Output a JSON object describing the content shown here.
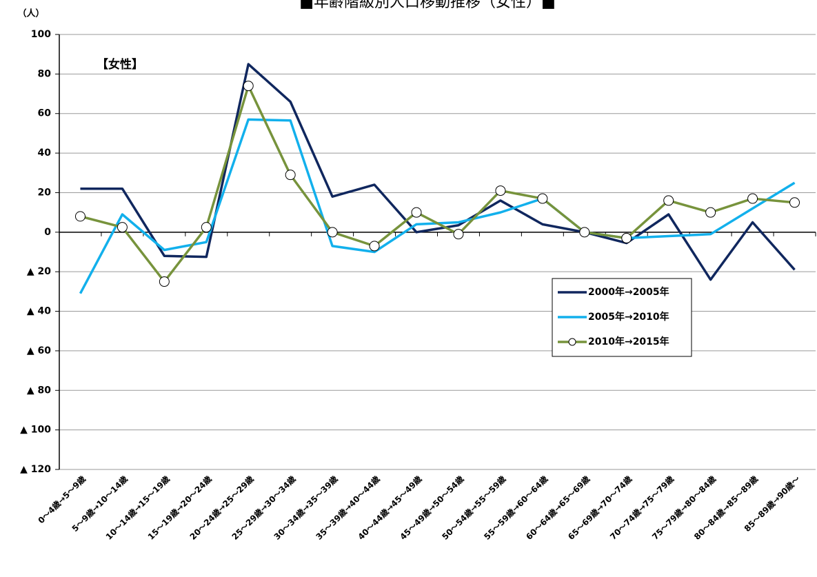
{
  "chart_data": {
    "type": "line",
    "title": "■年齢階級別人口移動推移（女性）■",
    "y_axis_label": "（人）",
    "annotation": "【女性】",
    "categories": [
      "0～4歳→5～9歳",
      "5～9歳→10～14歳",
      "10～14歳→15～19歳",
      "15～19歳→20～24歳",
      "20～24歳→25～29歳",
      "25～29歳→30～34歳",
      "30～34歳→35～39歳",
      "35～39歳→40～44歳",
      "40～44歳→45～49歳",
      "45～49歳→50～54歳",
      "50～54歳→55～59歳",
      "55～59歳→60～64歳",
      "60～64歳→65～69歳",
      "65～69歳→70～74歳",
      "70～74歳→75～79歳",
      "75～79歳→80～84歳",
      "80～84歳→85～89歳",
      "85～89歳→90歳～"
    ],
    "series": [
      {
        "name": "2000年→2005年",
        "color": "#10275e",
        "marker": false,
        "values": [
          22,
          22,
          -12,
          -12.5,
          85,
          66,
          18,
          24,
          0,
          3.5,
          16,
          4,
          0,
          -5.5,
          9,
          -24,
          5,
          -19
        ]
      },
      {
        "name": "2005年→2010年",
        "color": "#12b0ec",
        "marker": false,
        "values": [
          -31,
          9,
          -9,
          -5,
          57,
          56.5,
          -7,
          -10,
          4,
          5,
          10,
          17,
          0,
          -3,
          -2,
          -1,
          12,
          25
        ]
      },
      {
        "name": "2010年→2015年",
        "color": "#77933c",
        "marker": true,
        "values": [
          8,
          2.5,
          -25,
          2.5,
          74,
          29,
          0,
          -7,
          10,
          -1,
          21,
          17,
          0,
          -3,
          16,
          10,
          17,
          15
        ]
      }
    ],
    "ylim": [
      -120,
      100
    ],
    "yticks": [
      {
        "value": -120,
        "label": "▲ 120"
      },
      {
        "value": -100,
        "label": "▲ 100"
      },
      {
        "value": -80,
        "label": "▲ 80"
      },
      {
        "value": -60,
        "label": "▲ 60"
      },
      {
        "value": -40,
        "label": "▲ 40"
      },
      {
        "value": -20,
        "label": "▲ 20"
      },
      0,
      20,
      40,
      60,
      80,
      100
    ],
    "grid": true,
    "legend_position": "center right"
  }
}
